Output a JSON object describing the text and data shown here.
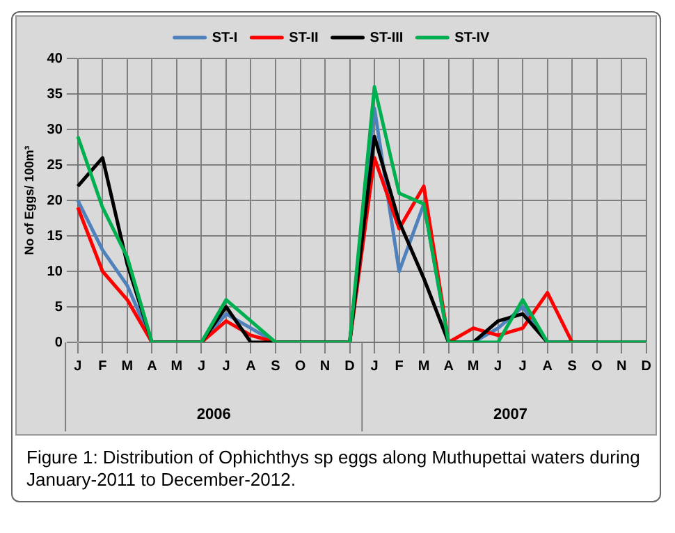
{
  "chart_data": {
    "type": "line",
    "ylabel": "No of Eggs/ 100m³",
    "categories": [
      "J",
      "F",
      "M",
      "A",
      "M",
      "J",
      "J",
      "A",
      "S",
      "O",
      "N",
      "D",
      "J",
      "F",
      "M",
      "A",
      "M",
      "J",
      "J",
      "A",
      "S",
      "O",
      "N",
      "D"
    ],
    "series": [
      {
        "name": "ST-I",
        "color": "#4f81bd",
        "values": [
          20,
          13,
          8,
          0,
          0,
          0,
          4,
          2,
          0,
          0,
          0,
          0,
          33,
          10,
          19.5,
          0,
          0,
          2,
          5,
          0,
          0,
          null,
          null,
          null
        ]
      },
      {
        "name": "ST-II",
        "color": "#ff0000",
        "values": [
          19,
          10,
          6,
          0,
          0,
          0,
          3,
          1,
          0,
          0,
          0,
          0,
          26,
          16,
          22,
          0,
          2,
          1,
          2,
          7,
          0,
          0,
          null,
          null
        ]
      },
      {
        "name": "ST-III",
        "color": "#000000",
        "values": [
          22,
          26,
          11,
          0,
          0,
          0,
          5,
          0,
          0,
          0,
          0,
          0,
          29,
          17,
          9,
          0,
          0,
          3,
          4,
          0,
          0,
          0,
          0,
          0
        ]
      },
      {
        "name": "ST-IV",
        "color": "#00b050",
        "values": [
          29,
          19,
          12,
          0,
          0,
          0,
          6,
          3,
          0,
          0,
          0,
          0,
          36,
          21,
          19.5,
          0,
          0,
          0,
          6,
          0,
          0,
          0,
          0,
          0
        ]
      }
    ],
    "ylim": [
      0,
      40
    ],
    "yticks": [
      0,
      5,
      10,
      15,
      20,
      25,
      30,
      35,
      40
    ],
    "grid": true,
    "legend": "top",
    "marker": "none",
    "line_style": "solid",
    "annotations": [
      "2006",
      "2007",
      "Figure 1: Distribution of Ophichthys sp eggs along Muthupettai waters during January-2011 to December-2012."
    ]
  }
}
